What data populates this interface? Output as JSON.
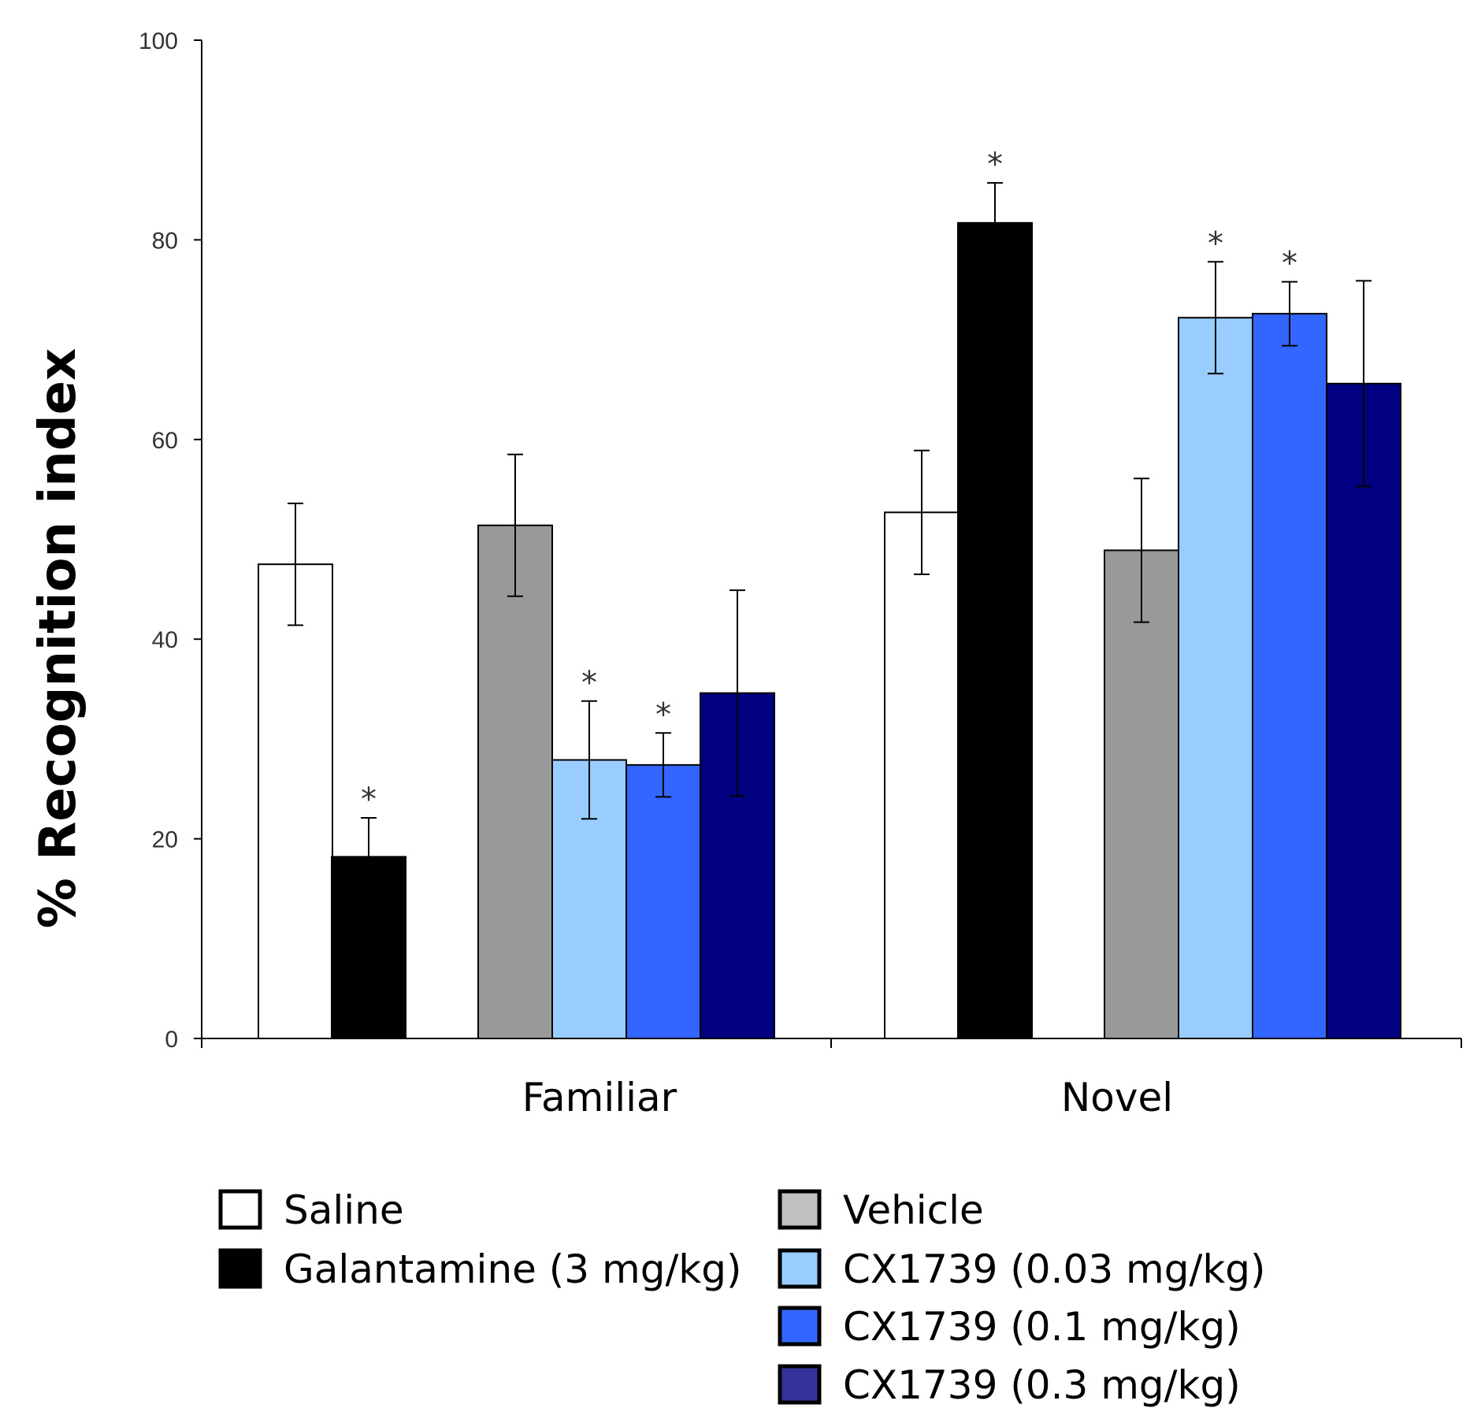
{
  "chart_data": {
    "type": "bar",
    "title": "",
    "xlabel": "",
    "ylabel": "% Recognition index",
    "ylim": [
      0,
      100
    ],
    "yticks": [
      "0",
      "20",
      "40",
      "60",
      "80",
      "100"
    ],
    "categories": [
      "Familiar",
      "Novel"
    ],
    "series": [
      {
        "name": "Saline",
        "color": "#ffffff",
        "values": [
          47.5,
          52.7
        ],
        "errors": [
          6.1,
          6.2
        ],
        "significant": [
          false,
          false
        ]
      },
      {
        "name": "Galantamine (3 mg/kg)",
        "color": "#000000",
        "values": [
          18.2,
          81.7
        ],
        "errors": [
          3.9,
          4.0
        ],
        "significant": [
          true,
          true
        ]
      },
      {
        "name": "Vehicle",
        "color": "#999999",
        "values": [
          51.4,
          48.9
        ],
        "errors": [
          7.1,
          7.2
        ],
        "significant": [
          false,
          false
        ]
      },
      {
        "name": "CX1739 (0.03 mg/kg)",
        "color": "#99ccff",
        "values": [
          27.9,
          72.2
        ],
        "errors": [
          5.9,
          5.6
        ],
        "significant": [
          true,
          true
        ]
      },
      {
        "name": "CX1739 (0.1 mg/kg)",
        "color": "#3366ff",
        "values": [
          27.4,
          72.6
        ],
        "errors": [
          3.2,
          3.2
        ],
        "significant": [
          true,
          true
        ]
      },
      {
        "name": "CX1739 (0.3 mg/kg)",
        "color": "#000080",
        "values": [
          34.6,
          65.6
        ],
        "errors": [
          10.3,
          10.3
        ],
        "significant": [
          false,
          false
        ]
      }
    ],
    "significance_marker": "*",
    "legend": {
      "position": "bottom",
      "swatch_colors": [
        "#ffffff",
        "#000000",
        "#c0c0c0",
        "#99ccff",
        "#3366ff",
        "#333399"
      ]
    }
  }
}
